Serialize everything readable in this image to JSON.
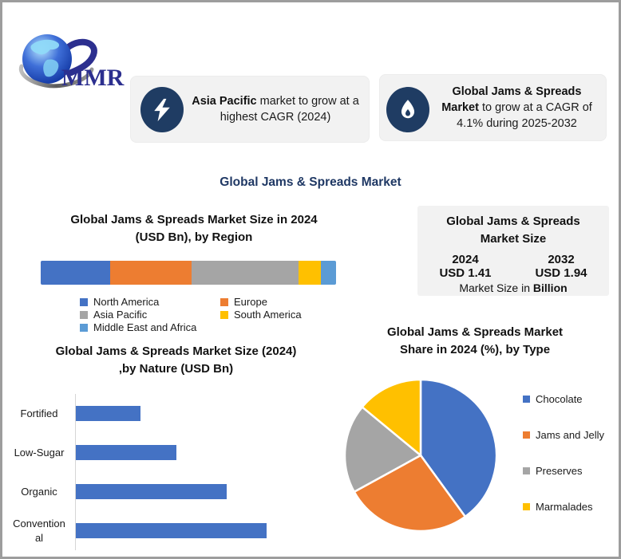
{
  "brand": {
    "logo_text": "MMR",
    "logo_color": "#2c2f8f"
  },
  "page": {
    "main_title": "Global Jams & Spreads Market",
    "title_color": "#1f3864"
  },
  "callouts": [
    {
      "icon": "lightning-icon",
      "bold": "Asia Pacific",
      "rest": " market to grow at a highest CAGR (2024)"
    },
    {
      "icon": "flame-icon",
      "bold": "Global Jams & Spreads Market",
      "rest": " to grow at a CAGR of 4.1% during 2025-2032"
    }
  ],
  "market_size_box": {
    "title_line1": "Global Jams & Spreads",
    "title_line2": "Market Size",
    "year_left": "2024",
    "year_right": "2032",
    "value_left": "USD 1.41",
    "value_right": "USD 1.94",
    "footer_prefix": "Market Size in ",
    "footer_bold": "Billion",
    "value_color": "#2e75b6"
  },
  "chart_data": [
    {
      "type": "bar",
      "subtype": "stacked-horizontal-single",
      "title": "Global Jams & Spreads Market Size in 2024 (USD Bn), by Region",
      "title_lines": [
        "Global Jams & Spreads Market Size  in 2024",
        "(USD Bn), by Region"
      ],
      "categories": [
        "North America",
        "Europe",
        "Asia Pacific",
        "South America",
        "Middle East and Africa"
      ],
      "values_pct": [
        23.5,
        27.6,
        36.2,
        7.6,
        5.1
      ],
      "values_are_estimated": true,
      "colors": [
        "#4472c4",
        "#ed7d31",
        "#a5a5a5",
        "#ffc000",
        "#5b9bd5"
      ],
      "legend_position": "bottom",
      "grid": false
    },
    {
      "type": "bar",
      "subtype": "horizontal",
      "title": "Global Jams & Spreads Market Size (2024) ,by Nature (USD Bn)",
      "title_lines": [
        "Global Jams & Spreads Market Size (2024)",
        ",by Nature (USD Bn)"
      ],
      "categories": [
        "Fortified",
        "Low-Sugar",
        "Organic",
        "Conventional"
      ],
      "values": [
        0.18,
        0.28,
        0.42,
        0.53
      ],
      "values_are_estimated": true,
      "bar_color": "#4472c4",
      "xlim": [
        0,
        0.55
      ],
      "grid": false,
      "axis_line": "left"
    },
    {
      "type": "pie",
      "title": "Global Jams & Spreads Market Share in 2024 (%), by Type",
      "title_lines": [
        "Global Jams & Spreads Market",
        "Share in 2024 (%), by Type"
      ],
      "labels": [
        "Chocolate",
        "Jams and Jelly",
        "Preserves",
        "Marmalades"
      ],
      "values": [
        40,
        27,
        19,
        14
      ],
      "values_are_estimated": true,
      "colors": [
        "#4472c4",
        "#ed7d31",
        "#a5a5a5",
        "#ffc000"
      ],
      "start_angle": "top",
      "direction": "clockwise",
      "legend_position": "right"
    }
  ]
}
